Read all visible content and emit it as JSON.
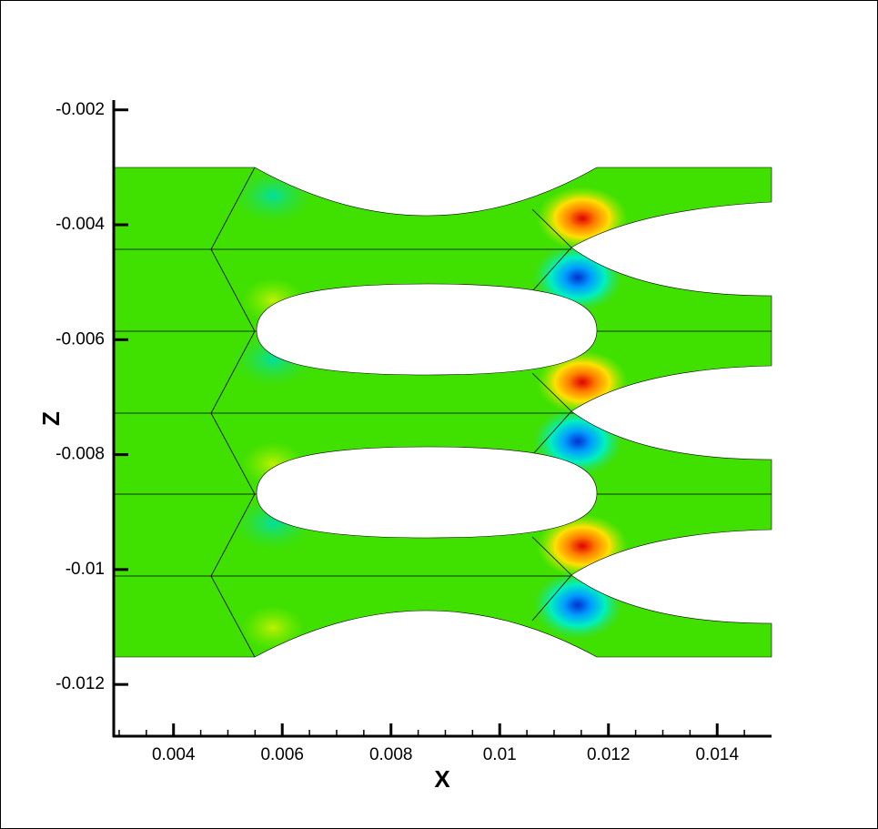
{
  "chart_data": {
    "type": "contour",
    "xlabel": "X",
    "ylabel": "Z",
    "xlim": [
      0.0029,
      0.015
    ],
    "xticks": [
      0.004,
      0.006,
      0.008,
      0.01,
      0.012,
      0.014
    ],
    "ylim": [
      -0.0129,
      -0.00183
    ],
    "yticks": [
      -0.002,
      -0.004,
      -0.006,
      -0.008,
      -0.01,
      -0.012
    ]
  }
}
